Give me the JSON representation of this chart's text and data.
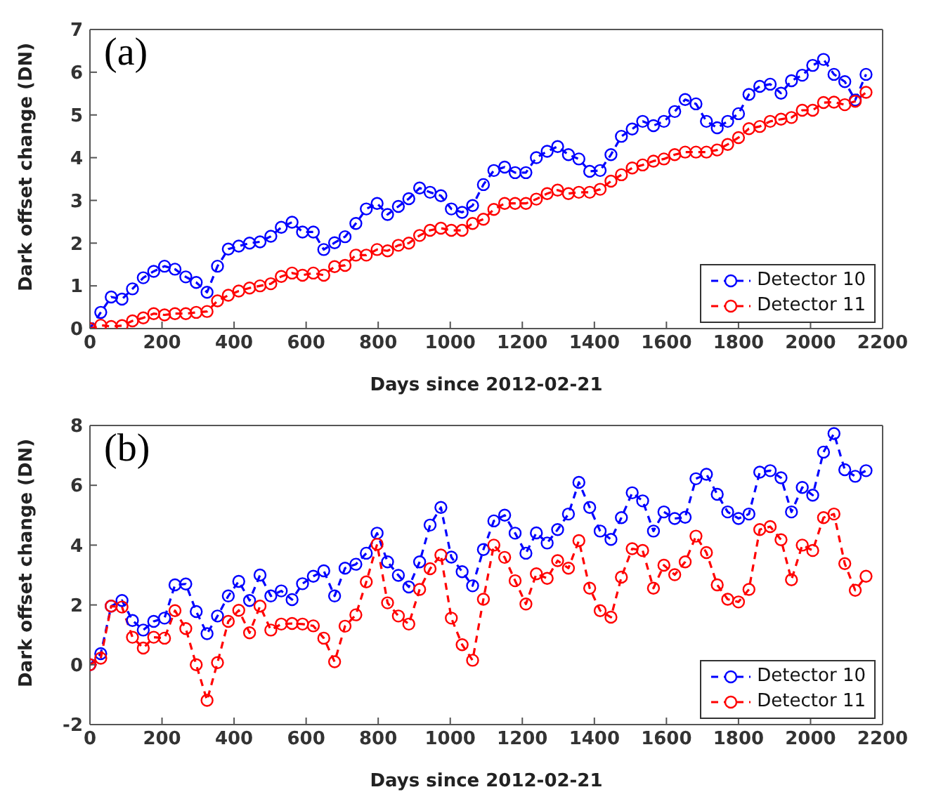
{
  "chart_data": [
    {
      "type": "line",
      "annotations": [
        "(a)"
      ],
      "xlabel": "Days since 2012-02-21",
      "ylabel": "Dark offset change (DN)",
      "xlim": [
        0,
        2200
      ],
      "xticks": [
        0,
        200,
        400,
        600,
        800,
        1000,
        1200,
        1400,
        1600,
        1800,
        2000,
        2200
      ],
      "ylim": [
        0,
        7
      ],
      "yticks": [
        0,
        1,
        2,
        3,
        4,
        5,
        6,
        7
      ],
      "grid": false,
      "legend": "bottom right",
      "marker": "circle",
      "line_style": "dashed",
      "x": [
        0,
        30,
        59,
        89,
        118,
        148,
        177,
        207,
        236,
        266,
        295,
        325,
        354,
        384,
        413,
        443,
        472,
        502,
        531,
        561,
        590,
        620,
        649,
        679,
        708,
        738,
        767,
        797,
        826,
        856,
        885,
        915,
        944,
        974,
        1003,
        1033,
        1062,
        1092,
        1121,
        1151,
        1180,
        1210,
        1239,
        1269,
        1298,
        1328,
        1357,
        1387,
        1416,
        1446,
        1475,
        1505,
        1534,
        1564,
        1593,
        1623,
        1652,
        1682,
        1711,
        1741,
        1770,
        1800,
        1829,
        1859,
        1888,
        1918,
        1947,
        1977,
        2006,
        2036,
        2065,
        2095,
        2124,
        2154
      ],
      "series": [
        {
          "name": "Detector 10",
          "color": "#0000ff",
          "values": [
            0,
            0.38,
            0.74,
            0.69,
            0.93,
            1.19,
            1.34,
            1.46,
            1.39,
            1.21,
            1.08,
            0.85,
            1.46,
            1.86,
            1.93,
            2.0,
            2.03,
            2.16,
            2.37,
            2.49,
            2.26,
            2.26,
            1.85,
            2.01,
            2.15,
            2.46,
            2.8,
            2.93,
            2.67,
            2.86,
            3.04,
            3.29,
            3.19,
            3.11,
            2.8,
            2.72,
            2.88,
            3.37,
            3.7,
            3.78,
            3.65,
            3.65,
            4.0,
            4.15,
            4.26,
            4.07,
            3.97,
            3.68,
            3.7,
            4.07,
            4.5,
            4.67,
            4.85,
            4.75,
            4.85,
            5.08,
            5.36,
            5.26,
            4.85,
            4.7,
            4.85,
            5.03,
            5.48,
            5.67,
            5.72,
            5.51,
            5.8,
            5.93,
            6.16,
            6.3,
            5.95,
            5.78,
            5.35,
            5.95
          ]
        },
        {
          "name": "Detector 11",
          "color": "#ff0000",
          "values": [
            0,
            0.08,
            0.05,
            0.07,
            0.18,
            0.25,
            0.35,
            0.32,
            0.35,
            0.35,
            0.38,
            0.4,
            0.65,
            0.78,
            0.88,
            0.95,
            1.0,
            1.05,
            1.22,
            1.3,
            1.25,
            1.3,
            1.25,
            1.45,
            1.48,
            1.72,
            1.72,
            1.85,
            1.82,
            1.95,
            2.0,
            2.18,
            2.3,
            2.35,
            2.3,
            2.3,
            2.46,
            2.56,
            2.79,
            2.93,
            2.93,
            2.93,
            3.03,
            3.16,
            3.24,
            3.16,
            3.19,
            3.19,
            3.26,
            3.45,
            3.6,
            3.76,
            3.83,
            3.92,
            3.97,
            4.07,
            4.13,
            4.13,
            4.13,
            4.18,
            4.31,
            4.47,
            4.68,
            4.73,
            4.85,
            4.9,
            4.94,
            5.11,
            5.11,
            5.29,
            5.3,
            5.24,
            5.32,
            5.53
          ]
        }
      ]
    },
    {
      "type": "line",
      "annotations": [
        "(b)"
      ],
      "xlabel": "Days since 2012-02-21",
      "ylabel": "Dark offset change (DN)",
      "xlim": [
        0,
        2200
      ],
      "xticks": [
        0,
        200,
        400,
        600,
        800,
        1000,
        1200,
        1400,
        1600,
        1800,
        2000,
        2200
      ],
      "ylim": [
        -2,
        8
      ],
      "yticks": [
        -2,
        0,
        2,
        4,
        6,
        8
      ],
      "grid": false,
      "legend": "bottom right",
      "marker": "circle",
      "line_style": "dashed",
      "x": [
        0,
        30,
        59,
        89,
        118,
        148,
        177,
        207,
        236,
        266,
        295,
        325,
        354,
        384,
        413,
        443,
        472,
        502,
        531,
        561,
        590,
        620,
        649,
        679,
        708,
        738,
        767,
        797,
        826,
        856,
        885,
        915,
        944,
        974,
        1003,
        1033,
        1062,
        1092,
        1121,
        1151,
        1180,
        1210,
        1239,
        1269,
        1298,
        1328,
        1357,
        1387,
        1416,
        1446,
        1475,
        1505,
        1534,
        1564,
        1593,
        1623,
        1652,
        1682,
        1711,
        1741,
        1770,
        1800,
        1829,
        1859,
        1888,
        1918,
        1947,
        1977,
        2006,
        2036,
        2065,
        2095,
        2124,
        2154
      ],
      "series": [
        {
          "name": "Detector 10",
          "color": "#0000ff",
          "values": [
            0,
            0.37,
            1.96,
            2.15,
            1.48,
            1.16,
            1.45,
            1.56,
            2.67,
            2.7,
            1.78,
            1.04,
            1.63,
            2.3,
            2.79,
            2.15,
            3.0,
            2.3,
            2.47,
            2.18,
            2.71,
            2.96,
            3.14,
            2.3,
            3.23,
            3.36,
            3.73,
            4.4,
            3.44,
            2.99,
            2.6,
            3.44,
            4.67,
            5.26,
            3.6,
            3.11,
            2.64,
            3.85,
            4.81,
            5.0,
            4.4,
            3.73,
            4.41,
            4.07,
            4.52,
            5.04,
            6.1,
            5.26,
            4.47,
            4.19,
            4.92,
            5.75,
            5.48,
            4.47,
            5.11,
            4.89,
            4.93,
            6.22,
            6.37,
            5.7,
            5.11,
            4.89,
            5.04,
            6.44,
            6.49,
            6.25,
            5.11,
            5.93,
            5.67,
            7.11,
            7.73,
            6.52,
            6.3,
            6.49
          ]
        },
        {
          "name": "Detector 11",
          "color": "#ff0000",
          "values": [
            0,
            0.22,
            1.96,
            1.93,
            0.92,
            0.56,
            0.92,
            0.89,
            1.81,
            1.21,
            0,
            -1.19,
            0.07,
            1.45,
            1.82,
            1.07,
            1.96,
            1.16,
            1.36,
            1.38,
            1.36,
            1.3,
            0.89,
            0.1,
            1.29,
            1.67,
            2.77,
            4.03,
            2.07,
            1.63,
            1.36,
            2.52,
            3.21,
            3.67,
            1.56,
            0.67,
            0.15,
            2.19,
            4.0,
            3.59,
            2.81,
            2.03,
            3.04,
            2.89,
            3.48,
            3.23,
            4.15,
            2.56,
            1.81,
            1.59,
            2.93,
            3.88,
            3.82,
            2.56,
            3.33,
            3.01,
            3.44,
            4.3,
            3.75,
            2.67,
            2.19,
            2.1,
            2.52,
            4.52,
            4.62,
            4.18,
            2.84,
            4.0,
            3.82,
            4.92,
            5.04,
            3.38,
            2.49,
            2.96
          ]
        }
      ]
    }
  ]
}
